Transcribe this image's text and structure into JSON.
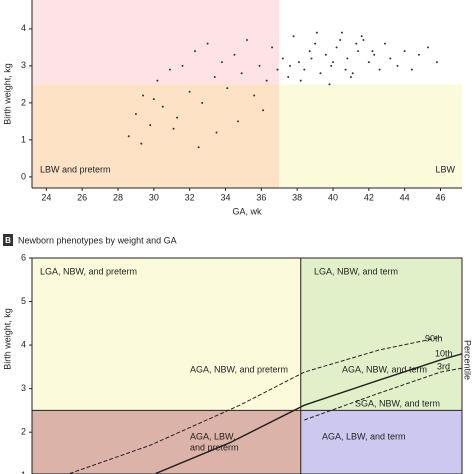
{
  "chart_data": [
    {
      "type": "scatter",
      "x_label": "GA, wk",
      "y_label": "Birth weight, kg",
      "xlim": [
        23.2,
        47.2
      ],
      "ylim": [
        -0.3,
        4.78
      ],
      "xticks": [
        24,
        26,
        28,
        30,
        32,
        34,
        36,
        38,
        40,
        42,
        44,
        46
      ],
      "yticks": [
        0,
        1,
        2,
        3,
        4
      ],
      "vlines": [
        37
      ],
      "hlines": [
        2.5
      ],
      "quadrant_colors": {
        "upper_left": "#fde3e6",
        "lower_left": "#fde2c6",
        "lower_right": "#fbfbdc",
        "upper_right": "#ffffff"
      },
      "annotations": [
        "LBW and preterm",
        "LBW"
      ],
      "color": "#333333",
      "x": [
        28.6,
        29,
        29.4,
        29.8,
        30.2,
        30.5,
        30.9,
        31.3,
        31.6,
        32,
        32.3,
        32.7,
        33,
        33.4,
        33.8,
        34.1,
        34.5,
        34.9,
        35.2,
        35.6,
        35.9,
        36.3,
        36.6,
        36.9,
        37.2,
        37.5,
        37.8,
        38.1,
        38.4,
        38.7,
        39,
        39.3,
        39.6,
        39.9,
        40.2,
        40.5,
        40.8,
        41.1,
        41.4,
        41.7,
        42,
        42.3,
        42.6,
        42.9,
        43.2,
        43.6,
        44,
        44.4,
        44.8,
        45.3,
        45.8,
        38.2,
        39.1,
        39.8,
        40.4,
        41,
        41.6,
        42.2,
        37.6,
        38.8,
        40,
        40.7,
        41.3,
        36.1,
        34.7,
        33.5,
        32.5,
        31.1,
        30,
        29.3
      ],
      "values": [
        1.1,
        1.7,
        2.2,
        1.4,
        2.6,
        1.9,
        2.9,
        1.6,
        3.0,
        2.3,
        3.4,
        2.0,
        3.6,
        2.7,
        3.1,
        2.4,
        3.3,
        2.8,
        3.7,
        2.2,
        3.0,
        2.6,
        3.5,
        2.9,
        3.2,
        2.7,
        3.8,
        3.1,
        2.9,
        3.4,
        3.6,
        2.8,
        3.3,
        3.0,
        3.5,
        3.9,
        3.2,
        2.8,
        3.4,
        3.7,
        3.1,
        3.3,
        2.9,
        3.6,
        3.2,
        3.0,
        3.4,
        2.9,
        3.3,
        3.5,
        3.1,
        2.6,
        3.9,
        2.5,
        3.7,
        2.7,
        3.8,
        3.4,
        3.0,
        3.2,
        3.1,
        2.9,
        3.6,
        1.8,
        1.5,
        1.2,
        0.8,
        1.3,
        2.1,
        0.9
      ]
    },
    {
      "type": "line",
      "panel": "B",
      "title": "Newborn phenotypes by weight and GA",
      "y_label": "Birth weight, kg",
      "xlim": [
        22,
        46
      ],
      "ylim": [
        1.04,
        6
      ],
      "yticks": [
        1,
        2,
        3,
        4,
        5,
        6
      ],
      "vlines": [
        37
      ],
      "hlines": [
        2.5
      ],
      "quadrant_colors": {
        "upper_left": "#fbfbdc",
        "lower_left": "#dcb3a8",
        "lower_right": "#cdc8f0",
        "upper_right": "#e1f0c8"
      },
      "legend_title": "Percentile",
      "annotations": [
        [
          "LGA, NBW, and preterm"
        ],
        [
          "LGA, NBW, and term"
        ],
        [
          "AGA, NBW, and preterm"
        ],
        [
          "AGA, NBW, and term"
        ],
        [
          "AGA, LBW,",
          "and preterm"
        ],
        [
          "SGA, NBW, and term"
        ],
        [
          "AGA, LBW, and term"
        ]
      ],
      "series": [
        {
          "name": "90th",
          "style": "dashed",
          "color": "#222222",
          "x": [
            24.1,
            28.6,
            33.6,
            37.2,
            41.4,
            44.8
          ],
          "values": [
            1.05,
            1.7,
            2.62,
            3.38,
            3.89,
            4.18
          ]
        },
        {
          "name": "10th",
          "style": "solid",
          "color": "#222222",
          "x": [
            28.9,
            33.0,
            37.2,
            41.4,
            44.8,
            46
          ],
          "values": [
            1.05,
            1.75,
            2.62,
            3.2,
            3.66,
            3.8
          ]
        },
        {
          "name": "3rd",
          "style": "dashed",
          "color": "#222222",
          "x": [
            37.2,
            41.4,
            44.8,
            46
          ],
          "values": [
            2.28,
            2.9,
            3.38,
            3.47
          ]
        }
      ]
    }
  ]
}
